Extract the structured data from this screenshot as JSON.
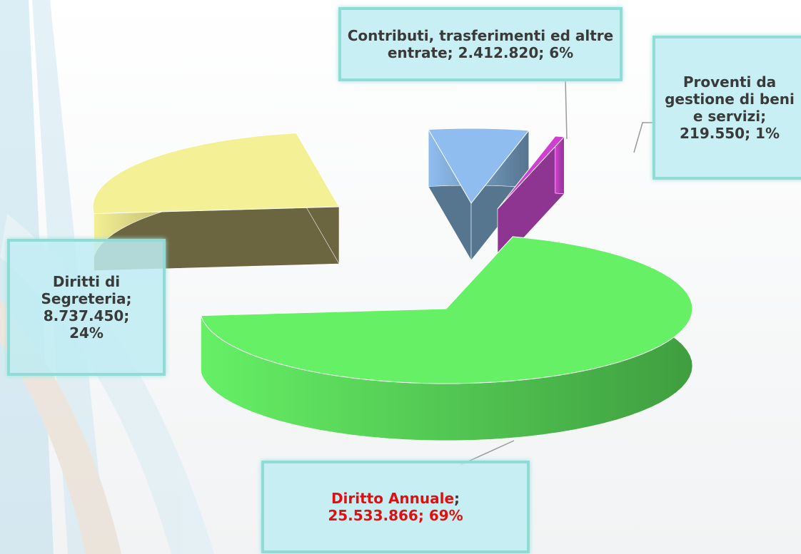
{
  "chart_data": {
    "type": "pie3d",
    "categories": [
      "Contributi, trasferimenti ed altre entrate",
      "Proventi da gestione di beni e servizi",
      "Diritto Annuale",
      "Diritti di Segreteria"
    ],
    "values": [
      2412820,
      219550,
      25533866,
      8737450
    ],
    "value_labels": [
      "2.412.820",
      "219.550",
      "25.533.866",
      "8.737.450"
    ],
    "percent_labels": [
      "6%",
      "1%",
      "69%",
      "24%"
    ],
    "separator": ";",
    "colors": [
      "#8fbdf0",
      "#d040d0",
      "#66f066",
      "#f4f095"
    ],
    "side_colors": [
      "#56758f",
      "#8e3592",
      "#3f9e3f",
      "#6b6540"
    ],
    "highlight_category": 2,
    "highlight_color": "#e01010"
  }
}
